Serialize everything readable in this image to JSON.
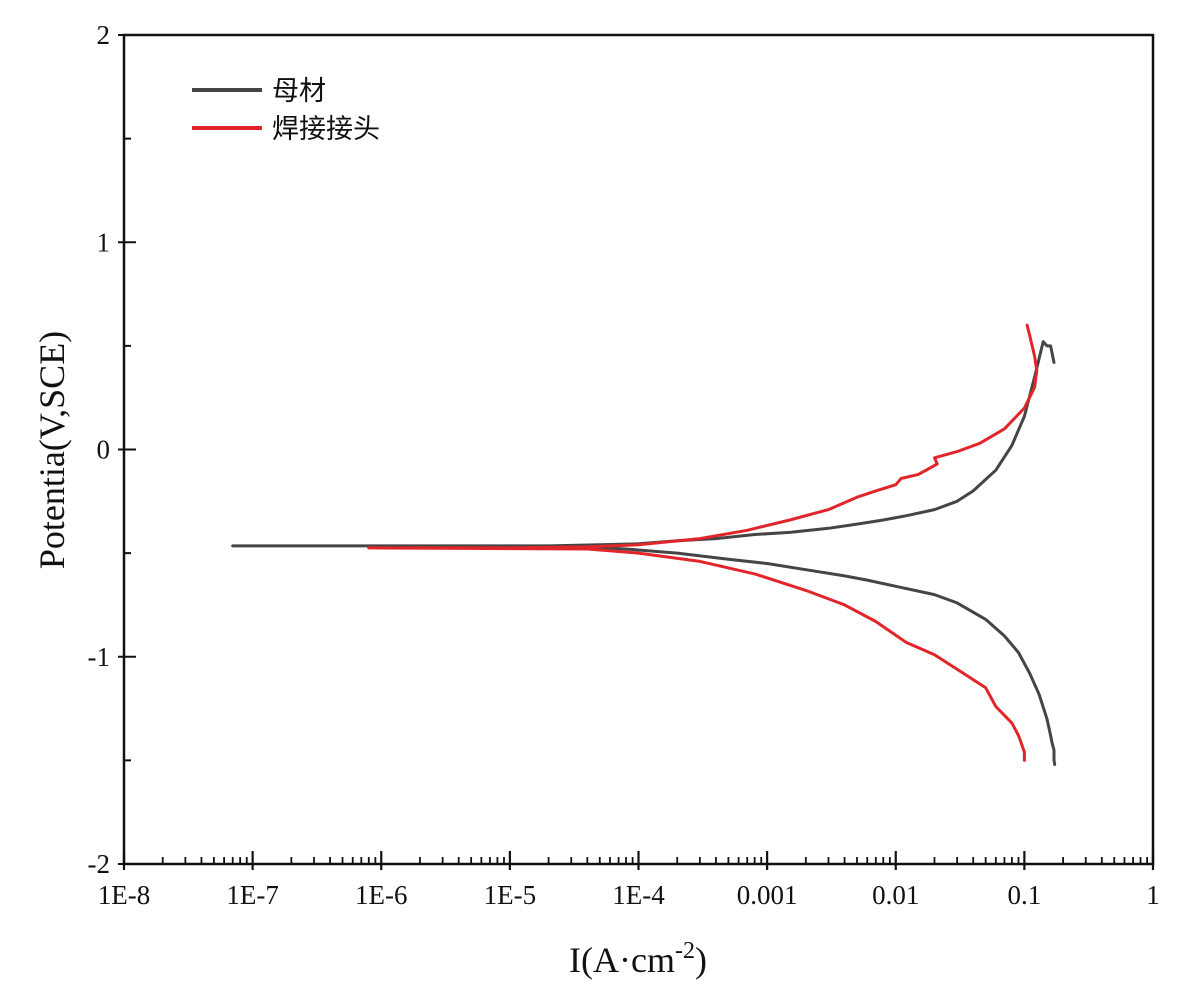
{
  "chart_data": {
    "type": "line",
    "title": "",
    "xlabel": "I(A·cm",
    "xlabel_sup": "-2",
    "xlabel_end": ")",
    "ylabel": "Potentia(V,SCE)",
    "xscale": "log",
    "xlim": [
      1e-08,
      1
    ],
    "ylim": [
      -2,
      2
    ],
    "xticks": [
      1e-08,
      1e-07,
      1e-06,
      1e-05,
      0.0001,
      0.001,
      0.01,
      0.1,
      1
    ],
    "xtick_labels": [
      "1E-8",
      "1E-7",
      "1E-6",
      "1E-5",
      "1E-4",
      "0.001",
      "0.01",
      "0.1",
      "1"
    ],
    "yticks": [
      2,
      1,
      0,
      -1,
      -2
    ],
    "ytick_labels": [
      "2",
      "1",
      "0",
      "-1",
      "-2"
    ],
    "legend_position": "top-left",
    "series": [
      {
        "name": "母材",
        "color": "#454545",
        "x": [
          0.17,
          0.165,
          0.16,
          0.15,
          0.14,
          0.12,
          0.1,
          0.08,
          0.06,
          0.04,
          0.03,
          0.02,
          0.012,
          0.008,
          0.005,
          0.003,
          0.0015,
          0.0008,
          0.0004,
          0.0002,
          0.0001,
          5e-05,
          2e-05,
          8e-06,
          2.5e-06,
          7e-07,
          7e-08,
          7e-08,
          7e-07,
          2e-06,
          6e-06,
          1.5e-05,
          4e-05,
          8e-05,
          0.0002,
          0.0005,
          0.001,
          0.002,
          0.004,
          0.006,
          0.01,
          0.02,
          0.03,
          0.05,
          0.07,
          0.09,
          0.11,
          0.13,
          0.15,
          0.16,
          0.165,
          0.17,
          0.17,
          0.172
        ],
        "y": [
          0.42,
          0.46,
          0.5,
          0.5,
          0.52,
          0.35,
          0.16,
          0.02,
          -0.1,
          -0.2,
          -0.25,
          -0.29,
          -0.32,
          -0.34,
          -0.36,
          -0.38,
          -0.4,
          -0.41,
          -0.43,
          -0.44,
          -0.455,
          -0.46,
          -0.465,
          -0.465,
          -0.465,
          -0.465,
          -0.465,
          -0.465,
          -0.465,
          -0.465,
          -0.465,
          -0.467,
          -0.47,
          -0.48,
          -0.5,
          -0.53,
          -0.55,
          -0.58,
          -0.61,
          -0.63,
          -0.66,
          -0.7,
          -0.74,
          -0.82,
          -0.9,
          -0.98,
          -1.08,
          -1.18,
          -1.3,
          -1.38,
          -1.42,
          -1.45,
          -1.5,
          -1.52
        ]
      },
      {
        "name": "焊接接头",
        "color": "#e0262b",
        "x": [
          0.105,
          0.11,
          0.12,
          0.125,
          0.12,
          0.1,
          0.07,
          0.045,
          0.03,
          0.02,
          0.021,
          0.015,
          0.011,
          0.01,
          0.007,
          0.005,
          0.003,
          0.0015,
          0.0007,
          0.0003,
          0.0001,
          4e-05,
          1e-05,
          3e-06,
          8e-07,
          8e-07,
          3e-06,
          1e-05,
          4e-05,
          0.0001,
          0.0003,
          0.0008,
          0.002,
          0.004,
          0.007,
          0.012,
          0.02,
          0.03,
          0.05,
          0.06,
          0.08,
          0.09,
          0.095,
          0.1,
          0.1
        ],
        "y": [
          0.6,
          0.55,
          0.45,
          0.38,
          0.3,
          0.2,
          0.1,
          0.03,
          -0.01,
          -0.04,
          -0.07,
          -0.12,
          -0.14,
          -0.17,
          -0.2,
          -0.23,
          -0.29,
          -0.34,
          -0.39,
          -0.43,
          -0.46,
          -0.47,
          -0.475,
          -0.475,
          -0.475,
          -0.475,
          -0.476,
          -0.478,
          -0.48,
          -0.5,
          -0.54,
          -0.6,
          -0.68,
          -0.75,
          -0.83,
          -0.93,
          -0.99,
          -1.06,
          -1.15,
          -1.24,
          -1.32,
          -1.38,
          -1.42,
          -1.46,
          -1.5
        ]
      }
    ]
  }
}
